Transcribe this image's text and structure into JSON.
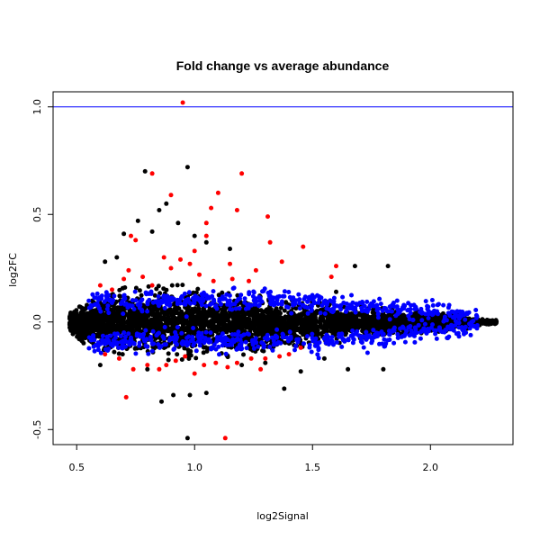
{
  "chart_data": {
    "type": "scatter",
    "title": "Fold change vs average abundance",
    "xlabel": "log2Signal",
    "ylabel": "log2FC",
    "xlim": [
      0.4,
      2.35
    ],
    "ylim": [
      -0.57,
      1.07
    ],
    "xticks": [
      0.5,
      1.0,
      1.5,
      2.0
    ],
    "xtick_labels": [
      "0.5",
      "1.0",
      "1.5",
      "2.0"
    ],
    "yticks": [
      -0.5,
      0.0,
      0.5,
      1.0
    ],
    "ytick_labels": [
      "-0.5",
      "0.0",
      "0.5",
      "1.0"
    ],
    "hline": 1.0,
    "hline_color": "#0000ff",
    "grid": false,
    "series": [
      {
        "color": "#000000",
        "note": "bulk points (band envelope + outliers)",
        "envelope": [
          {
            "x": 0.47,
            "lo": -0.05,
            "hi": 0.04
          },
          {
            "x": 0.55,
            "lo": -0.12,
            "hi": 0.1
          },
          {
            "x": 0.7,
            "lo": -0.16,
            "hi": 0.16
          },
          {
            "x": 0.9,
            "lo": -0.18,
            "hi": 0.18
          },
          {
            "x": 1.1,
            "lo": -0.17,
            "hi": 0.15
          },
          {
            "x": 1.3,
            "lo": -0.14,
            "hi": 0.12
          },
          {
            "x": 1.5,
            "lo": -0.11,
            "hi": 0.1
          },
          {
            "x": 1.7,
            "lo": -0.09,
            "hi": 0.08
          },
          {
            "x": 1.9,
            "lo": -0.06,
            "hi": 0.06
          },
          {
            "x": 2.1,
            "lo": -0.04,
            "hi": 0.04
          },
          {
            "x": 2.28,
            "lo": -0.01,
            "hi": 0.01
          }
        ],
        "outliers": [
          [
            0.79,
            0.7
          ],
          [
            0.97,
            0.72
          ],
          [
            0.88,
            0.55
          ],
          [
            0.85,
            0.52
          ],
          [
            0.76,
            0.47
          ],
          [
            0.7,
            0.41
          ],
          [
            0.93,
            0.46
          ],
          [
            0.82,
            0.42
          ],
          [
            1.0,
            0.4
          ],
          [
            0.91,
            -0.34
          ],
          [
            0.98,
            -0.34
          ],
          [
            0.86,
            -0.37
          ],
          [
            0.97,
            -0.54
          ],
          [
            1.05,
            -0.33
          ],
          [
            1.38,
            -0.31
          ],
          [
            1.82,
            0.26
          ],
          [
            1.68,
            0.26
          ],
          [
            1.65,
            -0.22
          ],
          [
            1.8,
            -0.22
          ],
          [
            1.45,
            -0.23
          ],
          [
            0.62,
            0.28
          ],
          [
            0.67,
            0.3
          ],
          [
            1.15,
            0.34
          ],
          [
            1.05,
            0.37
          ],
          [
            0.6,
            -0.2
          ],
          [
            0.8,
            -0.22
          ],
          [
            1.2,
            -0.2
          ],
          [
            1.3,
            -0.19
          ],
          [
            1.55,
            -0.17
          ],
          [
            1.6,
            0.14
          ]
        ]
      },
      {
        "color": "#0000ff",
        "note": "points near +/-0.1 band edges",
        "bands": [
          {
            "x0": 0.55,
            "x1": 2.2,
            "center_hi": 0.1,
            "center_lo": -0.09
          }
        ]
      },
      {
        "color": "#ff0000",
        "note": "significant points",
        "points": [
          [
            0.95,
            1.02
          ],
          [
            0.82,
            0.69
          ],
          [
            1.2,
            0.69
          ],
          [
            0.9,
            0.59
          ],
          [
            1.1,
            0.6
          ],
          [
            1.07,
            0.53
          ],
          [
            1.05,
            0.46
          ],
          [
            1.18,
            0.52
          ],
          [
            1.31,
            0.49
          ],
          [
            1.32,
            0.37
          ],
          [
            1.37,
            0.28
          ],
          [
            1.46,
            0.35
          ],
          [
            1.58,
            0.21
          ],
          [
            1.6,
            0.26
          ],
          [
            0.73,
            0.4
          ],
          [
            0.75,
            0.38
          ],
          [
            1.0,
            0.33
          ],
          [
            0.71,
            -0.35
          ],
          [
            1.13,
            -0.54
          ],
          [
            0.6,
            0.17
          ],
          [
            0.65,
            0.15
          ],
          [
            0.7,
            0.2
          ],
          [
            0.78,
            0.21
          ],
          [
            0.82,
            0.17
          ],
          [
            0.9,
            0.25
          ],
          [
            0.94,
            0.29
          ],
          [
            0.98,
            0.27
          ],
          [
            1.02,
            0.22
          ],
          [
            1.08,
            0.19
          ],
          [
            1.16,
            0.2
          ],
          [
            1.23,
            0.19
          ],
          [
            0.62,
            -0.15
          ],
          [
            0.68,
            -0.17
          ],
          [
            0.74,
            -0.22
          ],
          [
            0.8,
            -0.2
          ],
          [
            0.85,
            -0.22
          ],
          [
            0.88,
            -0.2
          ],
          [
            0.92,
            -0.18
          ],
          [
            0.96,
            -0.16
          ],
          [
            1.04,
            -0.2
          ],
          [
            1.09,
            -0.19
          ],
          [
            1.14,
            -0.21
          ],
          [
            1.18,
            -0.19
          ],
          [
            1.24,
            -0.17
          ],
          [
            1.3,
            -0.17
          ],
          [
            1.36,
            -0.16
          ],
          [
            1.4,
            -0.15
          ],
          [
            1.45,
            -0.12
          ],
          [
            1.05,
            0.4
          ],
          [
            0.87,
            0.3
          ],
          [
            1.15,
            0.27
          ],
          [
            0.72,
            0.24
          ],
          [
            1.26,
            0.24
          ],
          [
            1.28,
            -0.22
          ],
          [
            1.0,
            -0.24
          ]
        ]
      }
    ]
  }
}
